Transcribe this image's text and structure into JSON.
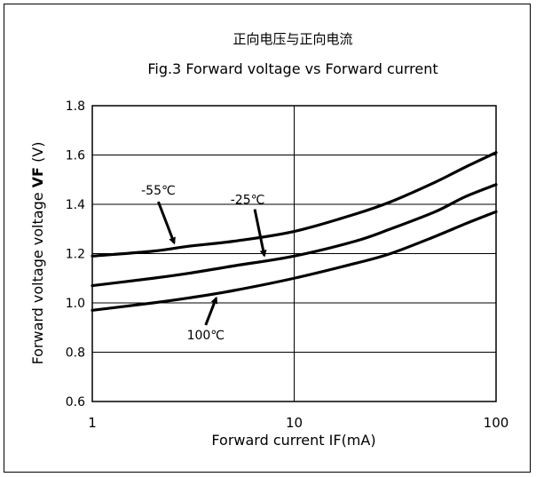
{
  "chart_data": {
    "type": "line",
    "title_cn": "正向电压与正向电流",
    "title": "Fig.3  Forward voltage vs Forward current",
    "xlabel": "Forward current IF(mA)",
    "ylabel_prefix": "Forward voltage voltage ",
    "ylabel_bold": "VF",
    "ylabel_suffix": " (V)",
    "xscale": "log",
    "xlim": [
      1,
      100
    ],
    "ylim": [
      0.6,
      1.8
    ],
    "xticks": [
      1,
      10,
      100
    ],
    "xtick_labels": [
      "1",
      "10",
      "100"
    ],
    "yticks": [
      0.6,
      0.8,
      1.0,
      1.2,
      1.4,
      1.6,
      1.8
    ],
    "ytick_labels": [
      "0.6",
      "0.8",
      "1.0",
      "1.2",
      "1.4",
      "1.6",
      "1.8"
    ],
    "grid": true,
    "x": [
      1,
      2,
      3,
      5,
      10,
      20,
      30,
      50,
      70,
      100
    ],
    "series": [
      {
        "name": "-55℃",
        "values": [
          1.19,
          1.21,
          1.23,
          1.25,
          1.29,
          1.36,
          1.41,
          1.49,
          1.55,
          1.61
        ]
      },
      {
        "name": "-25℃",
        "values": [
          1.07,
          1.1,
          1.12,
          1.15,
          1.19,
          1.25,
          1.3,
          1.37,
          1.43,
          1.48
        ]
      },
      {
        "name": "100℃",
        "values": [
          0.97,
          1.0,
          1.02,
          1.05,
          1.1,
          1.16,
          1.2,
          1.27,
          1.32,
          1.37
        ]
      }
    ],
    "annotations": [
      {
        "text": "-55℃",
        "series": 0,
        "x": 2.6
      },
      {
        "text": "-25℃",
        "series": 1,
        "x": 7.2
      },
      {
        "text": "100℃",
        "series": 2,
        "x": 4.2
      }
    ]
  }
}
